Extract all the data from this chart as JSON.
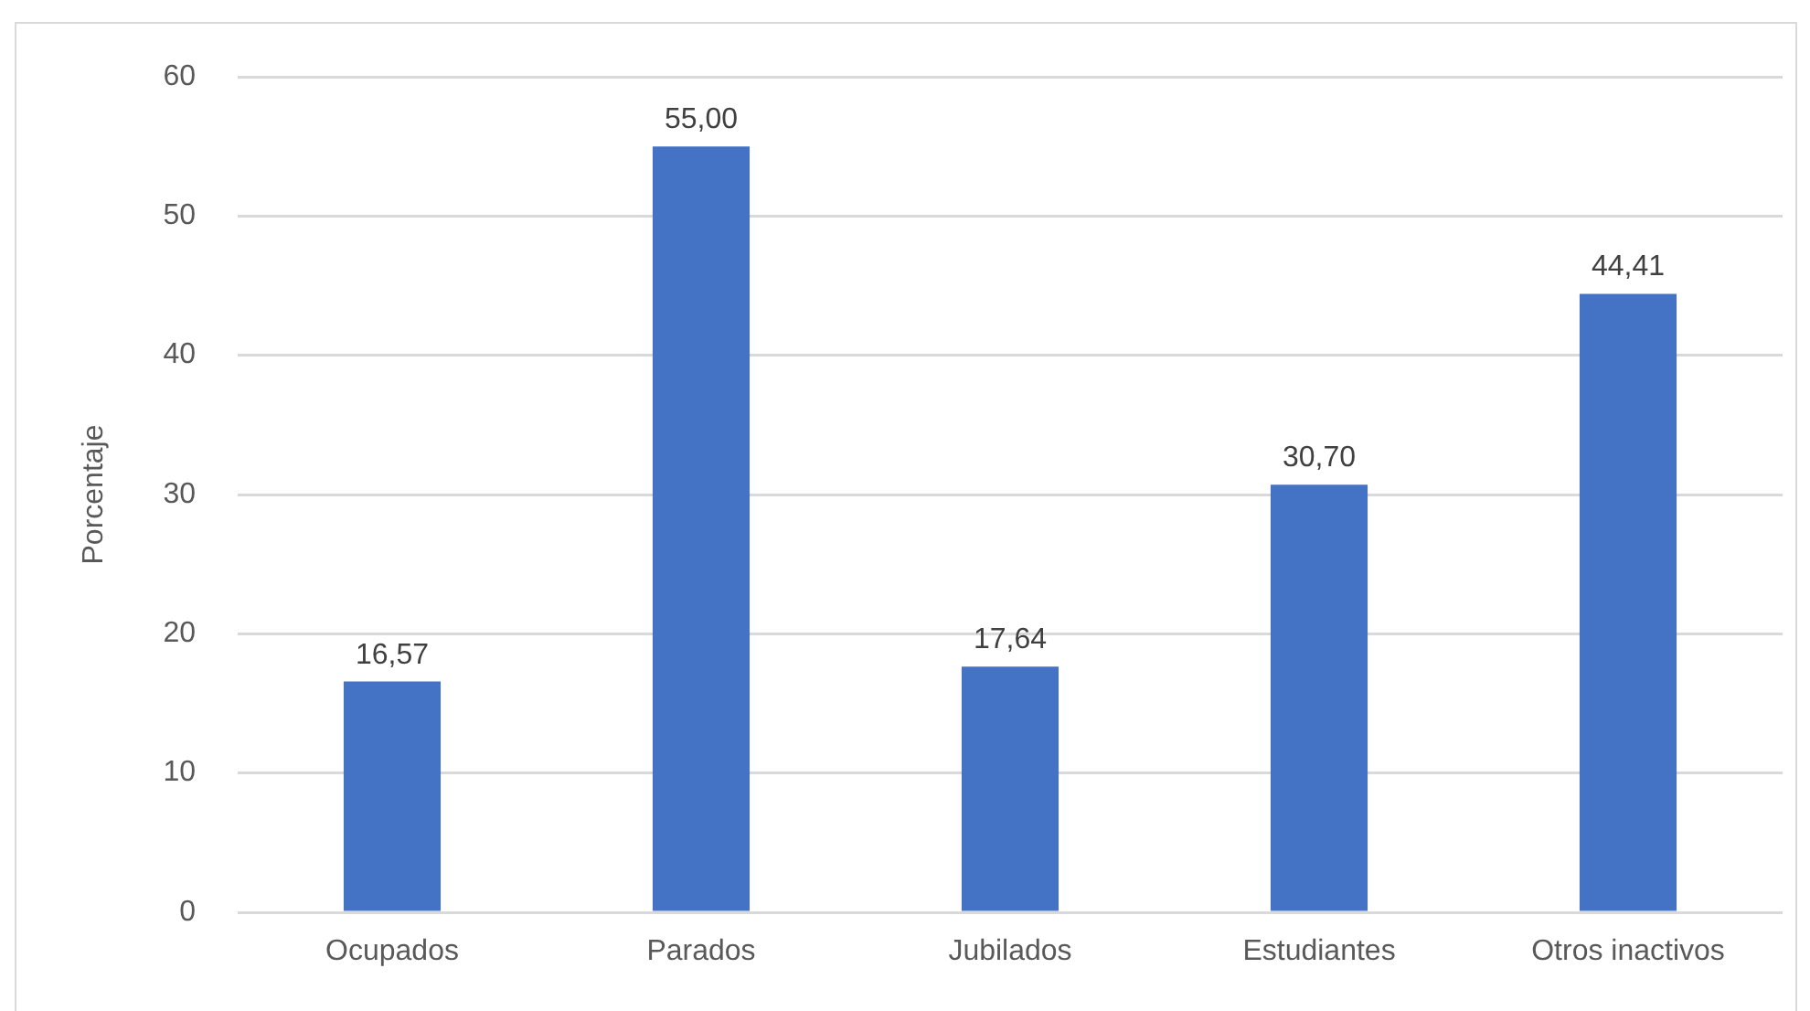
{
  "chart_data": {
    "type": "bar",
    "categories": [
      "Ocupados",
      "Parados",
      "Jubilados",
      "Estudiantes",
      "Otros inactivos"
    ],
    "values": [
      16.57,
      55.0,
      17.64,
      30.7,
      44.41
    ],
    "value_labels": [
      "16,57",
      "55,00",
      "17,64",
      "30,70",
      "44,41"
    ],
    "color": "#4472c4",
    "ylabel": "Porcentaje",
    "ylim": [
      0,
      60
    ],
    "yticks": [
      0,
      10,
      20,
      30,
      40,
      50,
      60
    ],
    "grid": "y"
  }
}
